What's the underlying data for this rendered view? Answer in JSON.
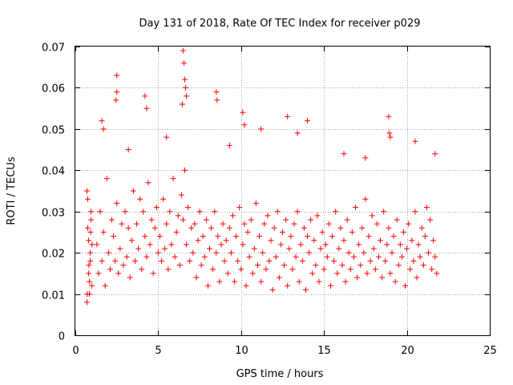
{
  "chart_data": {
    "type": "scatter",
    "title": "Day 131 of 2018, Rate Of TEC Index for receiver p029",
    "xlabel": "GPS time / hours",
    "ylabel": "ROTI / TECUs",
    "xlim": [
      0,
      25
    ],
    "ylim": [
      0,
      0.07
    ],
    "xticks": [
      0,
      5,
      10,
      15,
      20,
      25
    ],
    "xtick_labels": [
      "0",
      "5",
      "10",
      "15",
      "20",
      "25"
    ],
    "yticks": [
      0,
      0.01,
      0.02,
      0.03,
      0.04,
      0.05,
      0.06,
      0.07
    ],
    "ytick_labels": [
      "0",
      "0.01",
      "0.02",
      "0.03",
      "0.04",
      "0.05",
      "0.06",
      "0.07"
    ],
    "grid": true,
    "marker": "+",
    "color": "#ff0000",
    "series": [
      {
        "x": [
          0.7,
          0.75,
          0.8,
          0.85,
          0.9,
          0.95,
          1.0,
          0.7,
          0.8,
          0.9,
          0.75,
          0.85,
          0.95,
          1.0,
          0.72,
          0.82,
          0.92,
          1.3,
          1.4,
          1.5,
          1.6,
          1.7,
          1.8,
          1.9,
          2.0,
          2.1,
          2.2,
          2.3,
          2.4,
          2.5,
          2.6,
          2.7,
          2.8,
          2.9,
          3.0,
          3.1,
          3.2,
          3.3,
          3.4,
          3.5,
          3.6,
          3.7,
          3.8,
          3.9,
          4.0,
          4.1,
          4.2,
          4.3,
          4.4,
          4.5,
          4.6,
          4.7,
          4.8,
          4.9,
          5.0,
          5.1,
          5.2,
          5.3,
          5.4,
          5.5,
          5.6,
          5.7,
          5.8,
          5.9,
          6.0,
          6.1,
          6.2,
          6.3,
          6.4,
          6.5,
          6.6,
          6.7,
          6.8,
          6.9,
          7.0,
          7.1,
          7.2,
          7.3,
          7.4,
          7.5,
          7.6,
          7.7,
          7.8,
          7.9,
          8.0,
          8.1,
          8.2,
          8.3,
          8.4,
          8.5,
          8.6,
          8.7,
          8.8,
          8.9,
          9.0,
          9.1,
          9.2,
          9.3,
          9.4,
          9.5,
          9.6,
          9.7,
          9.8,
          9.9,
          10.0,
          10.1,
          10.2,
          10.3,
          10.4,
          10.5,
          10.6,
          10.7,
          10.8,
          10.9,
          11.0,
          11.1,
          11.2,
          11.3,
          11.4,
          11.5,
          11.6,
          11.7,
          11.8,
          11.9,
          12.0,
          12.1,
          12.2,
          12.3,
          12.4,
          12.5,
          12.6,
          12.7,
          12.8,
          12.9,
          13.0,
          13.1,
          13.2,
          13.3,
          13.4,
          13.5,
          13.6,
          13.7,
          13.8,
          13.9,
          14.0,
          14.1,
          14.2,
          14.3,
          14.4,
          14.5,
          14.6,
          14.7,
          14.8,
          14.9,
          15.0,
          15.1,
          15.2,
          15.3,
          15.4,
          15.5,
          15.6,
          15.7,
          15.8,
          15.9,
          16.0,
          16.1,
          16.2,
          16.3,
          16.4,
          16.5,
          16.6,
          16.7,
          16.8,
          16.9,
          17.0,
          17.1,
          17.2,
          17.3,
          17.4,
          17.5,
          17.6,
          17.7,
          17.8,
          17.9,
          18.0,
          18.1,
          18.2,
          18.3,
          18.4,
          18.5,
          18.6,
          18.7,
          18.8,
          18.9,
          19.0,
          19.1,
          19.2,
          19.3,
          19.4,
          19.5,
          19.6,
          19.7,
          19.8,
          19.9,
          20.0,
          20.1,
          20.2,
          20.3,
          20.4,
          20.5,
          20.6,
          20.7,
          20.8,
          20.9,
          21.0,
          21.1,
          21.2,
          21.3,
          21.4,
          21.5,
          21.6,
          21.7,
          21.8,
          2.5,
          2.5,
          2.45,
          4.2,
          4.3,
          6.5,
          6.55,
          6.6,
          6.65,
          6.7,
          6.45,
          8.5,
          8.55,
          10.1,
          10.2,
          12.8,
          14.0,
          18.9,
          19.0,
          18.95,
          20.5,
          21.7,
          1.6,
          1.7,
          3.2,
          5.5,
          9.3,
          11.2,
          13.4,
          16.2,
          17.5
        ],
        "y": [
          0.035,
          0.026,
          0.015,
          0.01,
          0.02,
          0.03,
          0.012,
          0.008,
          0.023,
          0.018,
          0.033,
          0.013,
          0.028,
          0.022,
          0.01,
          0.017,
          0.025,
          0.022,
          0.015,
          0.03,
          0.018,
          0.025,
          0.012,
          0.038,
          0.02,
          0.016,
          0.028,
          0.024,
          0.018,
          0.032,
          0.015,
          0.021,
          0.027,
          0.017,
          0.03,
          0.019,
          0.026,
          0.014,
          0.023,
          0.035,
          0.018,
          0.027,
          0.021,
          0.033,
          0.016,
          0.03,
          0.024,
          0.019,
          0.037,
          0.022,
          0.028,
          0.015,
          0.026,
          0.031,
          0.02,
          0.024,
          0.018,
          0.033,
          0.021,
          0.027,
          0.016,
          0.03,
          0.022,
          0.038,
          0.019,
          0.025,
          0.029,
          0.017,
          0.034,
          0.028,
          0.04,
          0.022,
          0.031,
          0.018,
          0.026,
          0.02,
          0.027,
          0.014,
          0.023,
          0.03,
          0.017,
          0.024,
          0.019,
          0.028,
          0.012,
          0.021,
          0.026,
          0.016,
          0.03,
          0.02,
          0.024,
          0.013,
          0.022,
          0.027,
          0.018,
          0.023,
          0.015,
          0.026,
          0.02,
          0.029,
          0.013,
          0.024,
          0.018,
          0.031,
          0.016,
          0.022,
          0.027,
          0.012,
          0.025,
          0.019,
          0.028,
          0.015,
          0.021,
          0.032,
          0.017,
          0.024,
          0.013,
          0.02,
          0.027,
          0.016,
          0.029,
          0.018,
          0.023,
          0.011,
          0.026,
          0.019,
          0.03,
          0.014,
          0.022,
          0.025,
          0.017,
          0.028,
          0.012,
          0.021,
          0.024,
          0.016,
          0.027,
          0.019,
          0.03,
          0.013,
          0.022,
          0.018,
          0.026,
          0.011,
          0.024,
          0.02,
          0.028,
          0.015,
          0.023,
          0.017,
          0.029,
          0.013,
          0.021,
          0.025,
          0.016,
          0.022,
          0.019,
          0.027,
          0.012,
          0.024,
          0.018,
          0.03,
          0.015,
          0.021,
          0.026,
          0.017,
          0.023,
          0.013,
          0.028,
          0.02,
          0.016,
          0.025,
          0.019,
          0.031,
          0.014,
          0.022,
          0.017,
          0.026,
          0.02,
          0.033,
          0.015,
          0.024,
          0.018,
          0.029,
          0.021,
          0.016,
          0.027,
          0.019,
          0.023,
          0.014,
          0.03,
          0.018,
          0.022,
          0.026,
          0.015,
          0.02,
          0.024,
          0.013,
          0.028,
          0.017,
          0.022,
          0.019,
          0.025,
          0.012,
          0.021,
          0.027,
          0.016,
          0.023,
          0.018,
          0.03,
          0.014,
          0.022,
          0.019,
          0.026,
          0.017,
          0.024,
          0.031,
          0.02,
          0.028,
          0.016,
          0.023,
          0.019,
          0.015,
          0.063,
          0.059,
          0.057,
          0.058,
          0.055,
          0.069,
          0.066,
          0.062,
          0.06,
          0.058,
          0.056,
          0.059,
          0.057,
          0.054,
          0.051,
          0.053,
          0.052,
          0.053,
          0.048,
          0.049,
          0.047,
          0.044,
          0.052,
          0.05,
          0.045,
          0.048,
          0.046,
          0.05,
          0.049,
          0.044,
          0.043
        ]
      }
    ]
  }
}
